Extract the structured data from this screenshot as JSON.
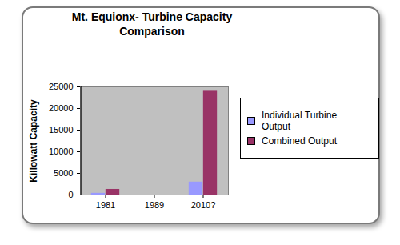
{
  "chart_data": {
    "type": "bar",
    "title": "Mt. Equionx- Turbine Capacity Comparison",
    "ylabel": "Killowatt Capacity",
    "categories": [
      "1981",
      "1989",
      "2010?"
    ],
    "series": [
      {
        "name": "Individual Turbine Output",
        "color": "#9999ff",
        "values": [
          400,
          null,
          3000
        ]
      },
      {
        "name": "Combined Output",
        "color": "#993366",
        "values": [
          1300,
          null,
          24000
        ]
      }
    ],
    "ylim": [
      0,
      25000
    ],
    "yticks": [
      0,
      5000,
      10000,
      15000,
      20000,
      25000
    ],
    "grid": false,
    "legend": "right"
  }
}
